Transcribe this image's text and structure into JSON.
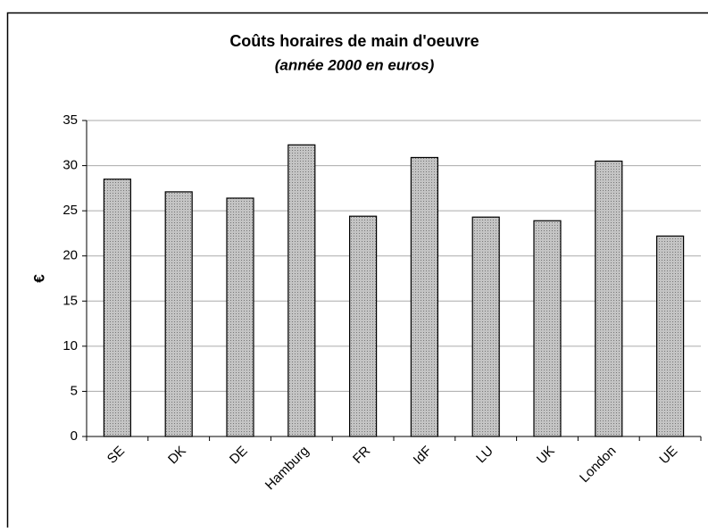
{
  "chart_data": {
    "type": "bar",
    "title": "Coûts horaires de main d'oeuvre",
    "subtitle": "(année 2000 en euros)",
    "y_label": "€",
    "categories": [
      "SE",
      "DK",
      "DE",
      "Hamburg",
      "FR",
      "IdF",
      "LU",
      "UK",
      "London",
      "UE"
    ],
    "values": [
      28.5,
      27.1,
      26.4,
      32.3,
      24.4,
      30.9,
      24.3,
      23.9,
      30.5,
      22.2
    ],
    "color": "#b4b4b4",
    "ylim": [
      0,
      35
    ],
    "yticks": [
      0,
      5,
      10,
      15,
      20,
      25,
      30,
      35
    ],
    "grid": true
  }
}
